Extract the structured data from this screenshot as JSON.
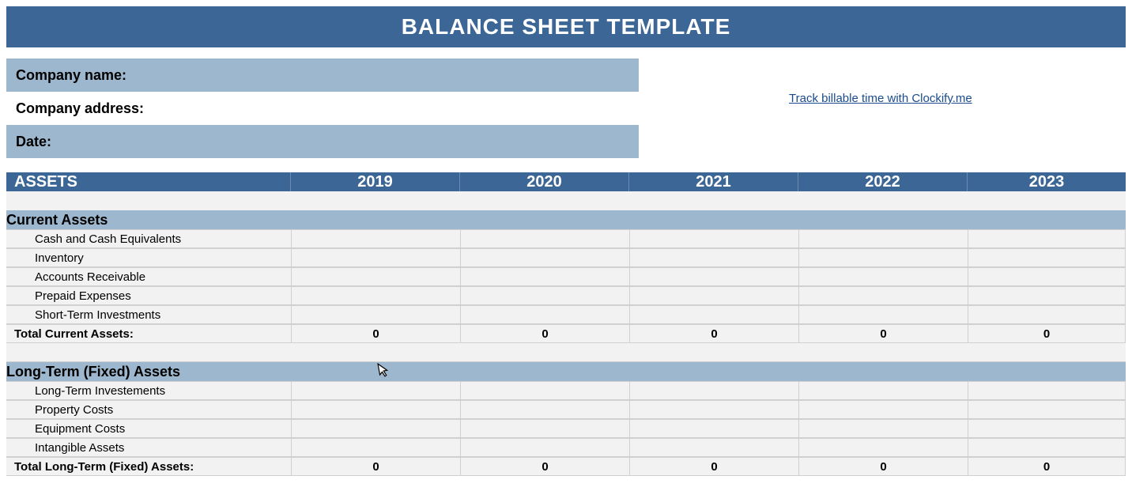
{
  "colors": {
    "header_bg": "#3b6696",
    "header_text": "#ffffff",
    "info_shaded_bg": "#9db7ce",
    "section_bg": "#9db7ce",
    "row_bg": "#f2f2f2",
    "grid_line": "#d0d0d0",
    "link_color": "#1a4b8c",
    "text": "#000000"
  },
  "title": "BALANCE SHEET TEMPLATE",
  "info": {
    "company_name_label": "Company name:",
    "company_address_label": "Company address:",
    "date_label": "Date:"
  },
  "link": {
    "text": "Track billable time with Clockify.me"
  },
  "table": {
    "header_label": "ASSETS",
    "year_columns": [
      "2019",
      "2020",
      "2021",
      "2022",
      "2023"
    ],
    "sections": [
      {
        "title": "Current Assets",
        "rows": [
          "Cash and Cash Equivalents",
          "Inventory",
          "Accounts Receivable",
          "Prepaid Expenses",
          "Short-Term Investments"
        ],
        "total_label": "Total Current Assets:",
        "totals": [
          "0",
          "0",
          "0",
          "0",
          "0"
        ]
      },
      {
        "title": "Long-Term (Fixed) Assets",
        "rows": [
          "Long-Term Investements",
          "Property Costs",
          "Equipment Costs",
          "Intangible Assets"
        ],
        "total_label": "Total Long-Term (Fixed) Assets:",
        "totals": [
          "0",
          "0",
          "0",
          "0",
          "0"
        ]
      }
    ]
  }
}
